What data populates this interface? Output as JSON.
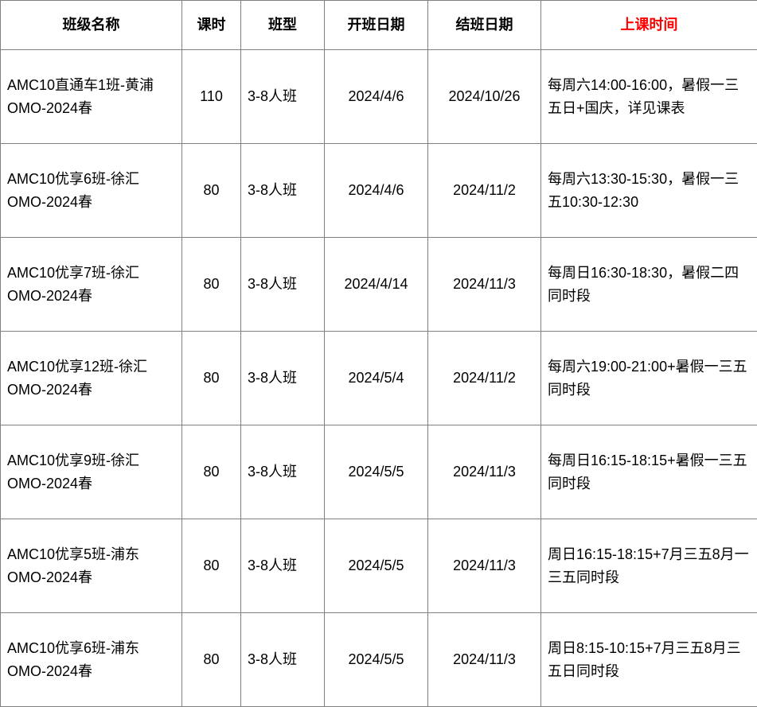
{
  "columns": [
    {
      "key": "name",
      "label": "班级名称",
      "align": "left",
      "widthClass": "col-name",
      "header_red": false
    },
    {
      "key": "hours",
      "label": "课时",
      "align": "center",
      "widthClass": "col-hours",
      "header_red": false
    },
    {
      "key": "type",
      "label": "班型",
      "align": "left",
      "widthClass": "col-type",
      "header_red": false
    },
    {
      "key": "start",
      "label": "开班日期",
      "align": "center",
      "widthClass": "col-start",
      "header_red": false
    },
    {
      "key": "end",
      "label": "结班日期",
      "align": "center",
      "widthClass": "col-end",
      "header_red": false
    },
    {
      "key": "time",
      "label": "上课时间",
      "align": "left",
      "widthClass": "col-time",
      "header_red": true
    }
  ],
  "rows": [
    {
      "name": "AMC10直通车1班-黄浦OMO-2024春",
      "hours": "110",
      "type": "3-8人班",
      "start": "2024/4/6",
      "end": "2024/10/26",
      "time": "每周六14:00-16:00，暑假一三五日+国庆，详见课表"
    },
    {
      "name": "AMC10优享6班-徐汇OMO-2024春",
      "hours": "80",
      "type": "3-8人班",
      "start": "2024/4/6",
      "end": "2024/11/2",
      "time": "每周六13:30-15:30，暑假一三五10:30-12:30"
    },
    {
      "name": "AMC10优享7班-徐汇OMO-2024春",
      "hours": "80",
      "type": "3-8人班",
      "start": "2024/4/14",
      "end": "2024/11/3",
      "time": "每周日16:30-18:30，暑假二四同时段"
    },
    {
      "name": "AMC10优享12班-徐汇OMO-2024春",
      "hours": "80",
      "type": "3-8人班",
      "start": "2024/5/4",
      "end": "2024/11/2",
      "time": "每周六19:00-21:00+暑假一三五同时段"
    },
    {
      "name": "AMC10优享9班-徐汇OMO-2024春",
      "hours": "80",
      "type": "3-8人班",
      "start": "2024/5/5",
      "end": "2024/11/3",
      "time": "每周日16:15-18:15+暑假一三五同时段"
    },
    {
      "name": "AMC10优享5班-浦东OMO-2024春",
      "hours": "80",
      "type": "3-8人班",
      "start": "2024/5/5",
      "end": "2024/11/3",
      "time": "周日16:15-18:15+7月三五8月一三五同时段"
    },
    {
      "name": "AMC10优享6班-浦东OMO-2024春",
      "hours": "80",
      "type": "3-8人班",
      "start": "2024/5/5",
      "end": "2024/11/3",
      "time": "周日8:15-10:15+7月三五8月三五日同时段"
    }
  ]
}
